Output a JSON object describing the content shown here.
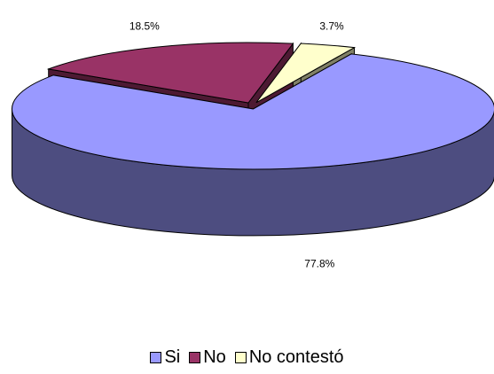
{
  "chart_data": {
    "type": "pie",
    "title": "",
    "slices": [
      {
        "label": "Si",
        "value": 77.8,
        "value_label": "77.8%",
        "color": "#9999ff",
        "side_color": "#4d4d80"
      },
      {
        "label": "No",
        "value": 18.5,
        "value_label": "18.5%",
        "color": "#993366",
        "side_color": "#4d1a33"
      },
      {
        "label": "No contestó",
        "value": 3.7,
        "value_label": "3.7%",
        "color": "#ffffcc",
        "side_color": "#808066"
      }
    ],
    "legend_position": "bottom",
    "style": "3d-exploded"
  }
}
